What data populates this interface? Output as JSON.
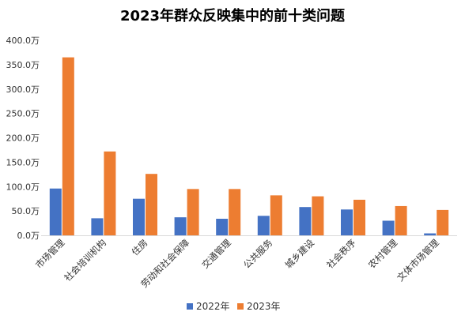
{
  "chart_data": {
    "type": "bar",
    "title": "2023年群众反映集中的前十类问题",
    "categories": [
      "市场管理",
      "社会培训机构",
      "住房",
      "劳动和社会保障",
      "交通管理",
      "公共服务",
      "城乡建设",
      "社会秩序",
      "农村管理",
      "文体市场管理"
    ],
    "series": [
      {
        "name": "2022年",
        "color": "#4472C4",
        "values": [
          96,
          35,
          75,
          37,
          34,
          40,
          58,
          53,
          30,
          4
        ]
      },
      {
        "name": "2023年",
        "color": "#ED7D31",
        "values": [
          365,
          172,
          126,
          95,
          95,
          82,
          80,
          73,
          60,
          52
        ]
      }
    ],
    "yticks": [
      "0.0万",
      "50.0万",
      "100.0万",
      "150.0万",
      "200.0万",
      "250.0万",
      "300.0万",
      "350.0万",
      "400.0万"
    ],
    "ylim": [
      0,
      400
    ],
    "legend_position": "bottom",
    "grid": false
  }
}
